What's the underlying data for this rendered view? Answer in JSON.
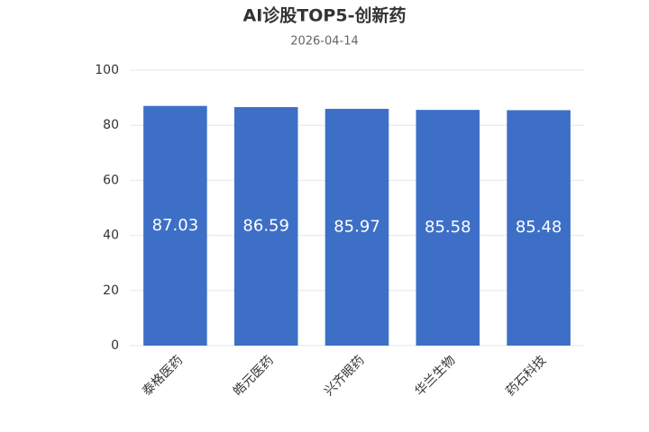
{
  "chart_data": {
    "type": "bar",
    "title": "AI诊股TOP5-创新药",
    "subtitle": "2026-04-14",
    "categories": [
      "泰格医药",
      "皓元医药",
      "兴齐眼药",
      "华兰生物",
      "药石科技"
    ],
    "values": [
      87.03,
      86.59,
      85.97,
      85.58,
      85.48
    ],
    "color": "#3d6fc6",
    "ylim": [
      0,
      100
    ],
    "yticks": [
      0,
      20,
      40,
      60,
      80,
      100
    ],
    "grid": true
  }
}
